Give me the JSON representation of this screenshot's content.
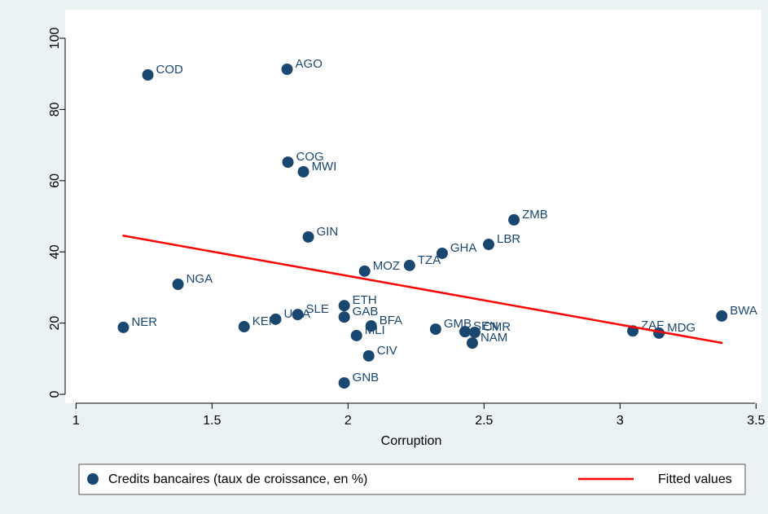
{
  "chart_data": {
    "type": "scatter",
    "xlabel": "Corruption",
    "xlim": [
      0.96,
      3.52
    ],
    "ylim": [
      -2.5,
      108
    ],
    "xticks": [
      1,
      1.5,
      2,
      2.5,
      3,
      3.5
    ],
    "yticks": [
      0,
      20,
      40,
      60,
      80,
      100
    ],
    "series": [
      {
        "name": "Credits bancaires (taux de croissance, en %)",
        "color": "#1a476f",
        "labels": [
          "COD",
          "AGO",
          "COG",
          "MWI",
          "ZMB",
          "GIN",
          "LBR",
          "GHA",
          "TZA",
          "MOZ",
          "NGA",
          "ETH",
          "SLE",
          "UGA",
          "GAB",
          "BWA",
          "BFA",
          "NER",
          "KEN",
          "GMB",
          "SEN",
          "CMR",
          "ZAF",
          "MDG",
          "MLI",
          "NAM",
          "CIV",
          "GNB"
        ],
        "x": [
          1.264,
          1.776,
          1.779,
          1.836,
          2.61,
          1.854,
          2.517,
          2.346,
          2.226,
          2.061,
          1.375,
          1.986,
          1.815,
          1.734,
          1.986,
          3.374,
          2.085,
          1.174,
          1.618,
          2.322,
          2.43,
          2.466,
          3.047,
          3.143,
          2.031,
          2.457,
          2.076,
          1.986
        ],
        "values": [
          89.7,
          91.3,
          65.2,
          62.5,
          49,
          44.2,
          42.1,
          39.6,
          36.2,
          34.6,
          30.9,
          24.9,
          22.4,
          21.1,
          21.7,
          22,
          19.2,
          18.8,
          19,
          18.3,
          17.6,
          17.4,
          17.8,
          17.2,
          16.5,
          14.4,
          10.8,
          3.2
        ]
      },
      {
        "name": "Fitted values",
        "type": "line",
        "color": "#ff0000",
        "x": [
          1.171,
          3.377
        ],
        "values": [
          44.6,
          14.4
        ]
      }
    ]
  }
}
